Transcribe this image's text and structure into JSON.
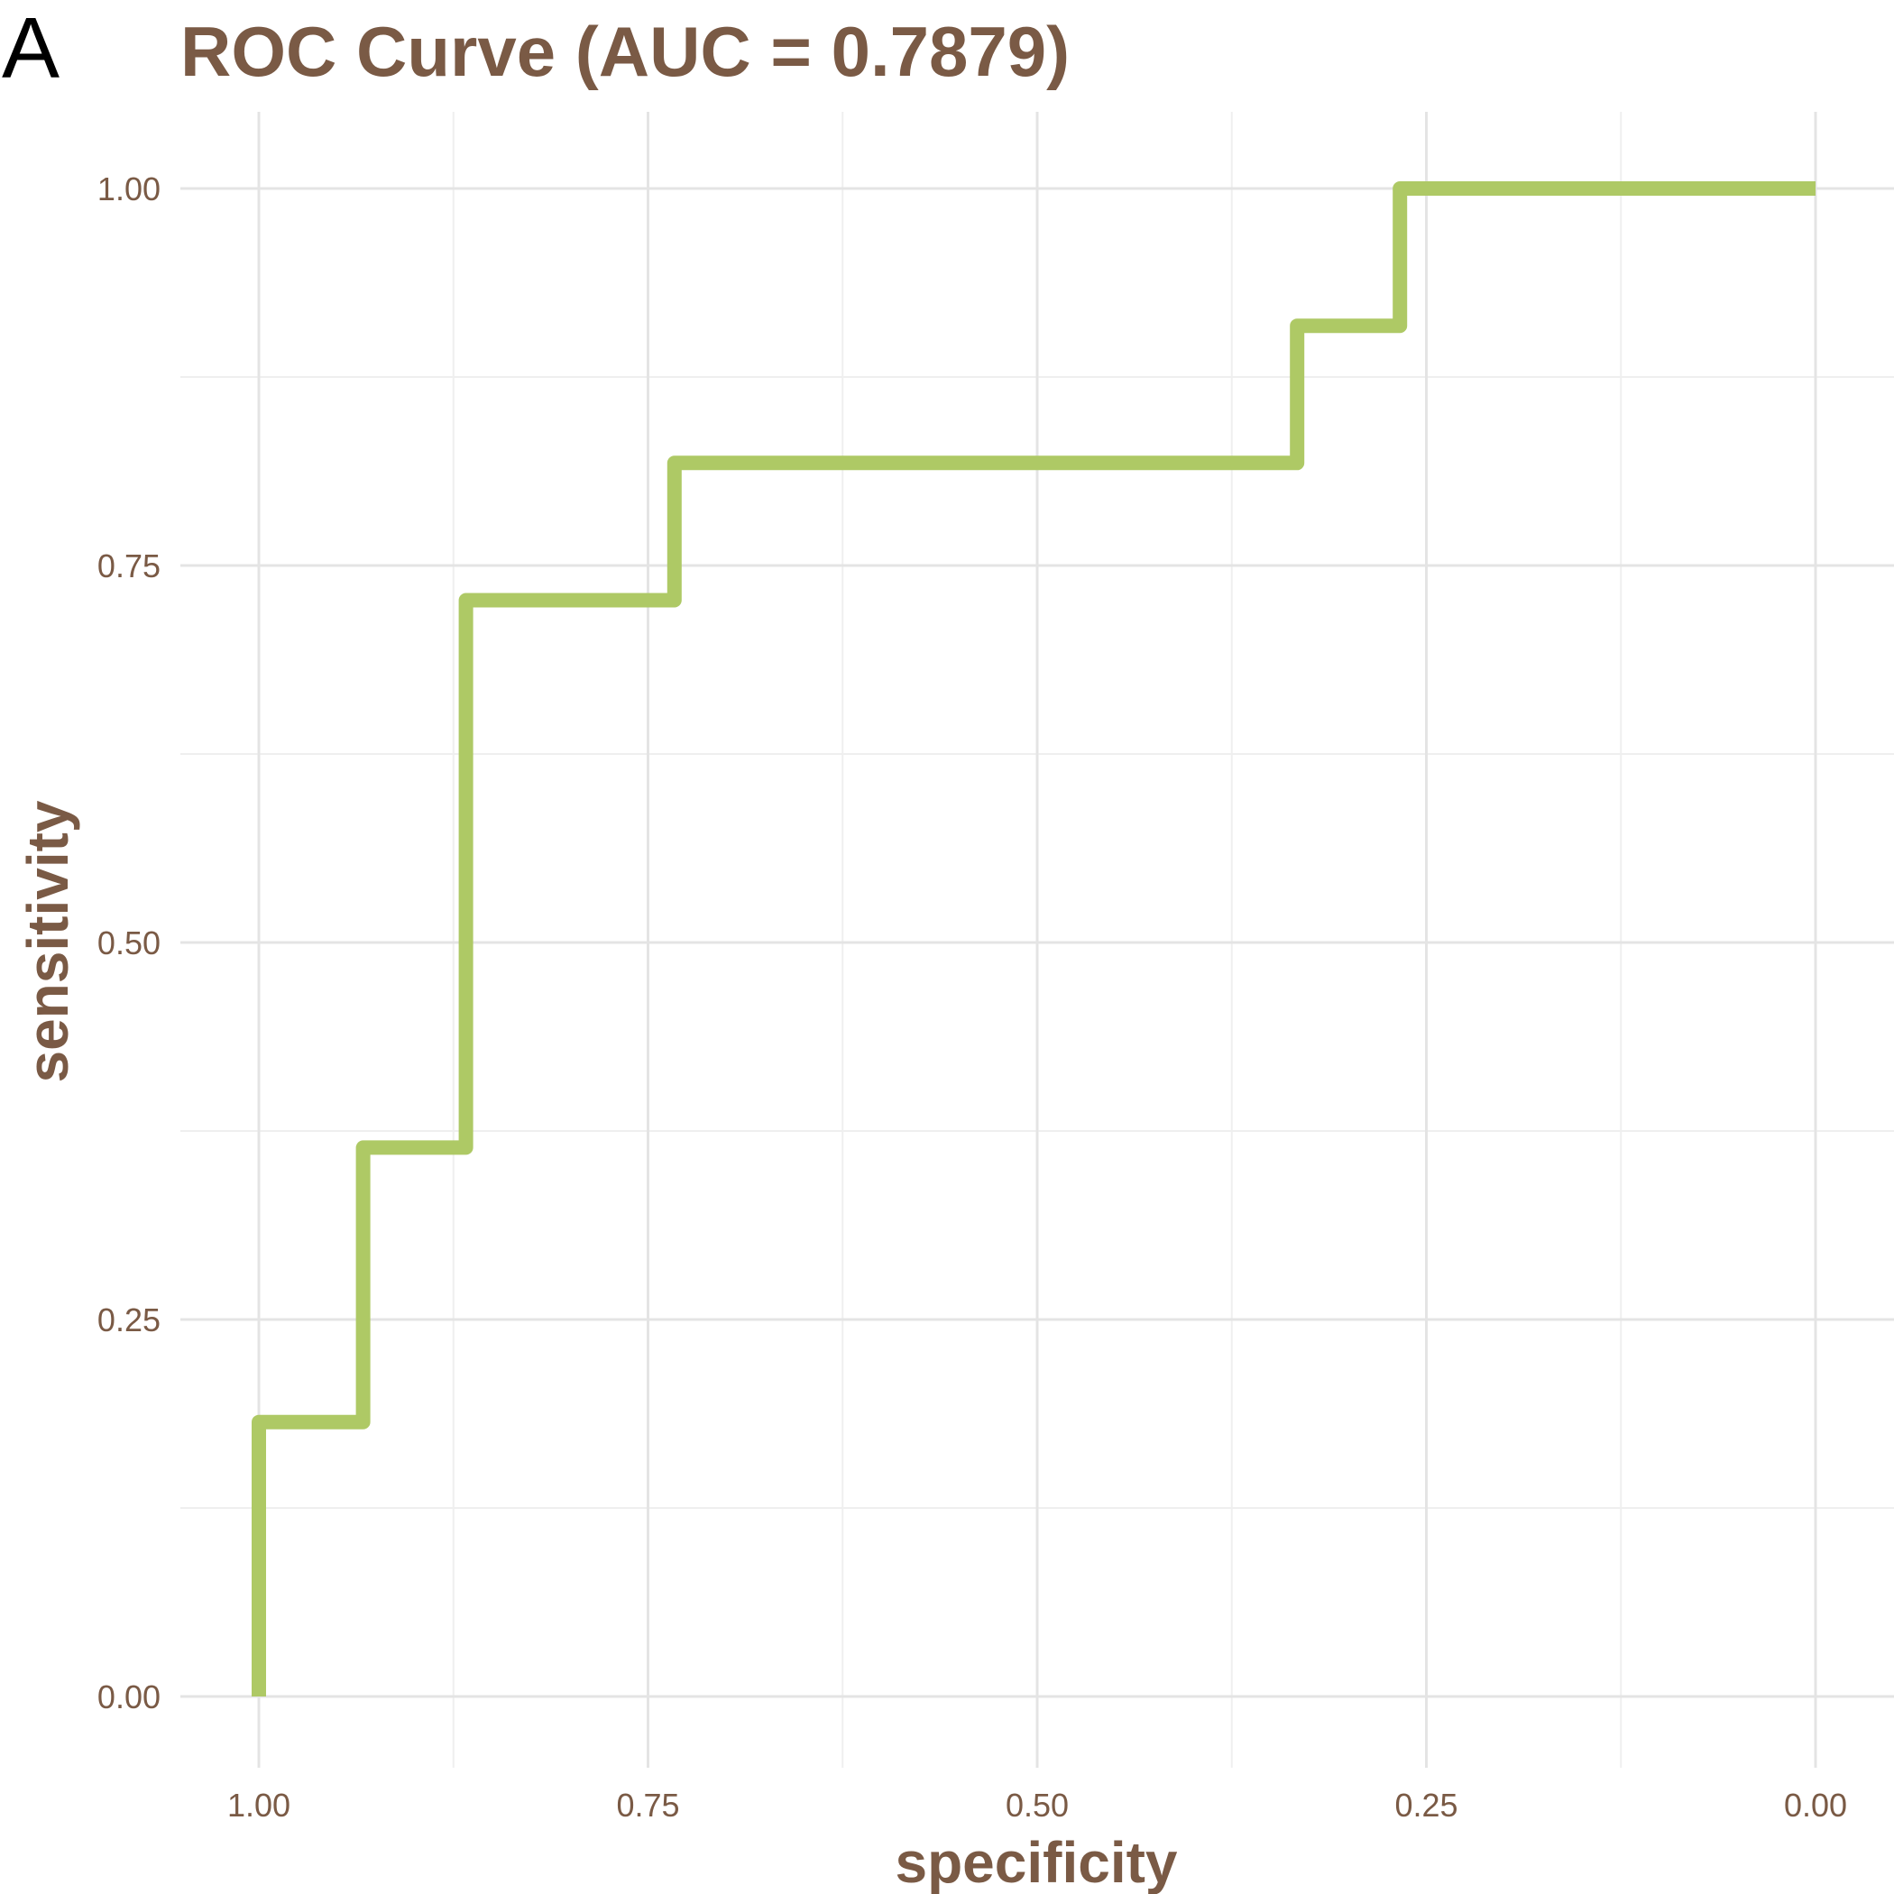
{
  "panel_label": "A",
  "colors": {
    "text": "#7a5a45",
    "curve": "#aec965",
    "grid_major": "#e4e4e4",
    "grid_minor": "#efefef",
    "background": "#ffffff"
  },
  "chart_data": {
    "type": "line",
    "style": "step",
    "title": "ROC Curve (AUC = 0.7879)",
    "xlabel": "specificity",
    "ylabel": "sensitivity",
    "x_reversed": true,
    "xlim": [
      1.0,
      0.0
    ],
    "ylim": [
      0.0,
      1.0
    ],
    "xticks": [
      1.0,
      0.75,
      0.5,
      0.25,
      0.0
    ],
    "xtick_labels": [
      "1.00",
      "0.75",
      "0.50",
      "0.25",
      "0.00"
    ],
    "yticks": [
      0.0,
      0.25,
      0.5,
      0.75,
      1.0
    ],
    "ytick_labels": [
      "0.00",
      "0.25",
      "0.50",
      "0.75",
      "1.00"
    ],
    "grid": true,
    "series": [
      {
        "points": [
          {
            "specificity": 1.0,
            "sensitivity": 0.0
          },
          {
            "specificity": 1.0,
            "sensitivity": 0.182
          },
          {
            "specificity": 0.933,
            "sensitivity": 0.182
          },
          {
            "specificity": 0.933,
            "sensitivity": 0.364
          },
          {
            "specificity": 0.867,
            "sensitivity": 0.364
          },
          {
            "specificity": 0.867,
            "sensitivity": 0.727
          },
          {
            "specificity": 0.733,
            "sensitivity": 0.727
          },
          {
            "specificity": 0.733,
            "sensitivity": 0.818
          },
          {
            "specificity": 0.333,
            "sensitivity": 0.818
          },
          {
            "specificity": 0.333,
            "sensitivity": 0.909
          },
          {
            "specificity": 0.267,
            "sensitivity": 0.909
          },
          {
            "specificity": 0.267,
            "sensitivity": 1.0
          },
          {
            "specificity": 0.0,
            "sensitivity": 1.0
          }
        ]
      }
    ]
  }
}
